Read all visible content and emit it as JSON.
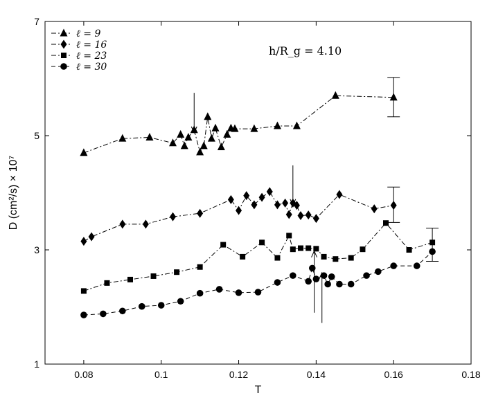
{
  "chart_data": {
    "type": "line",
    "title": "",
    "annotation": "h/R_g = 4.10",
    "xlabel": "T",
    "ylabel": "D (cm²/s) × 10⁷",
    "xlim": [
      0.07,
      0.18
    ],
    "ylim": [
      1,
      7
    ],
    "xticks": [
      "0.08",
      "0.1",
      "0.12",
      "0.14",
      "0.16",
      "0.18"
    ],
    "yticks": [
      "1",
      "3",
      "5",
      "7"
    ],
    "grid": false,
    "legend_position": "top-left",
    "series": [
      {
        "name": "ℓ = 9",
        "marker": "triangle",
        "dash": "dash-dot",
        "x": [
          0.08,
          0.09,
          0.097,
          0.103,
          0.105,
          0.106,
          0.107,
          0.1085,
          0.11,
          0.111,
          0.112,
          0.113,
          0.114,
          0.1155,
          0.117,
          0.118,
          0.119,
          0.124,
          0.13,
          0.135,
          0.145,
          0.16
        ],
        "y": [
          4.7,
          4.95,
          4.97,
          4.87,
          5.02,
          4.82,
          4.97,
          5.1,
          4.71,
          4.82,
          5.33,
          4.95,
          5.13,
          4.8,
          5.02,
          5.13,
          5.12,
          5.12,
          5.17,
          5.17,
          5.7,
          5.67
        ]
      },
      {
        "name": "ℓ = 16",
        "marker": "diamond",
        "dash": "dash-dot",
        "x": [
          0.08,
          0.082,
          0.09,
          0.096,
          0.103,
          0.11,
          0.118,
          0.12,
          0.122,
          0.124,
          0.126,
          0.128,
          0.13,
          0.132,
          0.133,
          0.134,
          0.135,
          0.136,
          0.138,
          0.14,
          0.146,
          0.155,
          0.16
        ],
        "y": [
          3.15,
          3.23,
          3.45,
          3.45,
          3.58,
          3.64,
          3.88,
          3.69,
          3.95,
          3.79,
          3.92,
          4.02,
          3.79,
          3.82,
          3.62,
          3.82,
          3.78,
          3.6,
          3.61,
          3.55,
          3.97,
          3.72,
          3.78
        ]
      },
      {
        "name": "ℓ = 23",
        "marker": "square",
        "dash": "dash-dot",
        "x": [
          0.08,
          0.086,
          0.092,
          0.098,
          0.104,
          0.11,
          0.116,
          0.121,
          0.126,
          0.13,
          0.133,
          0.134,
          0.136,
          0.138,
          0.14,
          0.142,
          0.145,
          0.149,
          0.152,
          0.158,
          0.164,
          0.17
        ],
        "y": [
          2.28,
          2.42,
          2.48,
          2.54,
          2.61,
          2.7,
          3.09,
          2.88,
          3.13,
          2.86,
          3.25,
          3.01,
          3.03,
          3.03,
          3.02,
          2.88,
          2.84,
          2.86,
          3.01,
          3.47,
          3.0,
          3.13
        ]
      },
      {
        "name": "ℓ = 30",
        "marker": "circle",
        "dash": "dashed",
        "x": [
          0.08,
          0.085,
          0.09,
          0.095,
          0.1,
          0.105,
          0.11,
          0.115,
          0.12,
          0.125,
          0.13,
          0.134,
          0.138,
          0.139,
          0.14,
          0.142,
          0.143,
          0.144,
          0.146,
          0.149,
          0.153,
          0.156,
          0.16,
          0.166,
          0.17
        ],
        "y": [
          1.86,
          1.88,
          1.93,
          2.01,
          2.03,
          2.1,
          2.24,
          2.31,
          2.25,
          2.26,
          2.43,
          2.55,
          2.45,
          2.68,
          2.49,
          2.55,
          2.4,
          2.53,
          2.4,
          2.4,
          2.55,
          2.62,
          2.72,
          2.72,
          2.97
        ]
      }
    ],
    "error_bars": [
      {
        "x": 0.16,
        "low": 5.33,
        "high": 6.02
      },
      {
        "x": 0.16,
        "low": 3.48,
        "high": 4.1
      },
      {
        "x": 0.17,
        "low": 2.8,
        "high": 3.38
      }
    ],
    "arrows": [
      {
        "x": 0.1085,
        "from_y": 5.75,
        "to_y": 5.05
      },
      {
        "x": 0.134,
        "from_y": 4.48,
        "to_y": 3.78
      },
      {
        "x": 0.1395,
        "from_y": 1.9,
        "to_y": 2.98
      },
      {
        "x": 0.1415,
        "from_y": 1.72,
        "to_y": 2.6
      }
    ]
  }
}
